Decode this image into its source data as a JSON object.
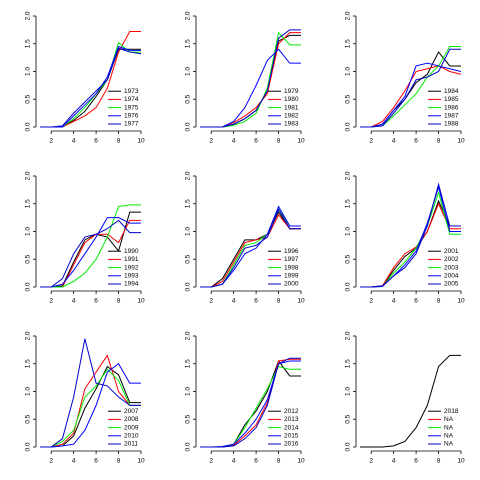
{
  "chart_data": [
    {
      "type": "line",
      "x": [
        1,
        2,
        3,
        4,
        5,
        6,
        7,
        8,
        9,
        10
      ],
      "xlim": [
        1,
        10
      ],
      "xticks": [
        2,
        4,
        6,
        8,
        10
      ],
      "ylim": [
        0,
        2
      ],
      "yticks": [
        {
          "value": 0,
          "label": "0.0"
        },
        {
          "value": 0.5,
          "label": "0.5"
        },
        {
          "value": 1,
          "label": "1.0"
        },
        {
          "value": 1.5,
          "label": "1.5"
        },
        {
          "value": 2,
          "label": "2.0"
        }
      ],
      "legend": "bottomright",
      "series": [
        {
          "name": "1973",
          "color": "#000000",
          "values": [
            0,
            0,
            0,
            0.12,
            0.28,
            0.55,
            0.85,
            1.4,
            1.4,
            1.4
          ]
        },
        {
          "name": "1974",
          "color": "#ff0000",
          "values": [
            0,
            0,
            0,
            0.1,
            0.2,
            0.35,
            0.7,
            1.35,
            1.72,
            1.72
          ]
        },
        {
          "name": "1975",
          "color": "#00ee00",
          "values": [
            0,
            0,
            0,
            0.15,
            0.35,
            0.6,
            0.85,
            1.52,
            1.35,
            1.35
          ]
        },
        {
          "name": "1976",
          "color": "#0000ff",
          "values": [
            0,
            0,
            0,
            0.2,
            0.4,
            0.6,
            0.9,
            1.45,
            1.38,
            1.38
          ]
        },
        {
          "name": "1977",
          "color": "#0000cd",
          "values": [
            0,
            0,
            0.02,
            0.25,
            0.45,
            0.65,
            0.85,
            1.42,
            1.35,
            1.32
          ]
        }
      ]
    },
    {
      "type": "line",
      "x": [
        1,
        2,
        3,
        4,
        5,
        6,
        7,
        8,
        9,
        10
      ],
      "xlim": [
        1,
        10
      ],
      "xticks": [
        2,
        4,
        6,
        8,
        10
      ],
      "ylim": [
        0,
        2
      ],
      "yticks": [
        {
          "value": 0,
          "label": "0.0"
        },
        {
          "value": 0.5,
          "label": "0.5"
        },
        {
          "value": 1,
          "label": "1.0"
        },
        {
          "value": 1.5,
          "label": "1.5"
        },
        {
          "value": 2,
          "label": "2.0"
        }
      ],
      "legend": "bottomright",
      "series": [
        {
          "name": "1979",
          "color": "#000000",
          "values": [
            0,
            0,
            0,
            0.05,
            0.15,
            0.3,
            0.65,
            1.55,
            1.65,
            1.65
          ]
        },
        {
          "name": "1980",
          "color": "#ff0000",
          "values": [
            0,
            0,
            0,
            0.08,
            0.2,
            0.35,
            0.6,
            1.5,
            1.7,
            1.7
          ]
        },
        {
          "name": "1981",
          "color": "#00ee00",
          "values": [
            0,
            0,
            0,
            0.03,
            0.1,
            0.25,
            0.7,
            1.7,
            1.48,
            1.48
          ]
        },
        {
          "name": "1982",
          "color": "#0000ff",
          "values": [
            0,
            0,
            0,
            0.1,
            0.35,
            0.75,
            1.2,
            1.4,
            1.15,
            1.15
          ]
        },
        {
          "name": "1983",
          "color": "#0000cd",
          "values": [
            0,
            0,
            0,
            0.05,
            0.15,
            0.3,
            0.65,
            1.6,
            1.75,
            1.75
          ]
        }
      ]
    },
    {
      "type": "line",
      "x": [
        1,
        2,
        3,
        4,
        5,
        6,
        7,
        8,
        9,
        10
      ],
      "xlim": [
        1,
        10
      ],
      "xticks": [
        2,
        4,
        6,
        8,
        10
      ],
      "ylim": [
        0,
        2
      ],
      "yticks": [
        {
          "value": 0,
          "label": "0.0"
        },
        {
          "value": 0.5,
          "label": "0.5"
        },
        {
          "value": 1,
          "label": "1.0"
        },
        {
          "value": 1.5,
          "label": "1.5"
        },
        {
          "value": 2,
          "label": "2.0"
        }
      ],
      "legend": "bottomright",
      "series": [
        {
          "name": "1984",
          "color": "#000000",
          "values": [
            0,
            0,
            0.05,
            0.3,
            0.5,
            0.8,
            0.95,
            1.35,
            1.1,
            1.1
          ]
        },
        {
          "name": "1985",
          "color": "#ff0000",
          "values": [
            0,
            0,
            0.1,
            0.35,
            0.65,
            1.0,
            1.05,
            1.1,
            1.0,
            0.95
          ]
        },
        {
          "name": "1986",
          "color": "#00ee00",
          "values": [
            0,
            0,
            0.02,
            0.2,
            0.4,
            0.6,
            0.9,
            1.1,
            1.45,
            1.45
          ]
        },
        {
          "name": "1987",
          "color": "#0000ff",
          "values": [
            0,
            0,
            0.05,
            0.3,
            0.55,
            1.1,
            1.15,
            1.1,
            1.05,
            1.0
          ]
        },
        {
          "name": "1988",
          "color": "#0000cd",
          "values": [
            0,
            0,
            0.02,
            0.25,
            0.5,
            0.85,
            0.9,
            1.0,
            1.4,
            1.4
          ]
        }
      ]
    },
    {
      "type": "line",
      "x": [
        1,
        2,
        3,
        4,
        5,
        6,
        7,
        8,
        9,
        10
      ],
      "xlim": [
        1,
        10
      ],
      "xticks": [
        2,
        4,
        6,
        8,
        10
      ],
      "ylim": [
        0,
        2
      ],
      "yticks": [
        {
          "value": 0,
          "label": "0.0"
        },
        {
          "value": 0.5,
          "label": "0.5"
        },
        {
          "value": 1,
          "label": "1.0"
        },
        {
          "value": 1.5,
          "label": "1.5"
        },
        {
          "value": 2,
          "label": "2.0"
        }
      ],
      "legend": "bottomright",
      "series": [
        {
          "name": "1990",
          "color": "#000000",
          "values": [
            0,
            0,
            0.02,
            0.45,
            0.85,
            0.95,
            0.9,
            0.65,
            1.35,
            1.35
          ]
        },
        {
          "name": "1991",
          "color": "#ff0000",
          "values": [
            0,
            0,
            0,
            0.4,
            0.8,
            0.95,
            0.95,
            0.8,
            1.2,
            1.2
          ]
        },
        {
          "name": "1992",
          "color": "#00ee00",
          "values": [
            0,
            0,
            0,
            0.1,
            0.25,
            0.5,
            0.9,
            1.45,
            1.48,
            1.48
          ]
        },
        {
          "name": "1993",
          "color": "#0000ff",
          "values": [
            0,
            0,
            0.05,
            0.3,
            0.6,
            0.9,
            1.25,
            1.25,
            1.15,
            1.15
          ]
        },
        {
          "name": "1994",
          "color": "#0000cd",
          "values": [
            0,
            0,
            0.15,
            0.6,
            0.9,
            0.95,
            1.05,
            1.2,
            0.98,
            0.98
          ]
        }
      ]
    },
    {
      "type": "line",
      "x": [
        1,
        2,
        3,
        4,
        5,
        6,
        7,
        8,
        9,
        10
      ],
      "xlim": [
        1,
        10
      ],
      "xticks": [
        2,
        4,
        6,
        8,
        10
      ],
      "ylim": [
        0,
        2
      ],
      "yticks": [
        {
          "value": 0,
          "label": "0.0"
        },
        {
          "value": 0.5,
          "label": "0.5"
        },
        {
          "value": 1,
          "label": "1.0"
        },
        {
          "value": 1.5,
          "label": "1.5"
        },
        {
          "value": 2,
          "label": "2.0"
        }
      ],
      "legend": "bottomright",
      "series": [
        {
          "name": "1996",
          "color": "#000000",
          "values": [
            0,
            0,
            0.15,
            0.5,
            0.85,
            0.85,
            0.95,
            1.35,
            1.05,
            1.05
          ]
        },
        {
          "name": "1997",
          "color": "#ff0000",
          "values": [
            0,
            0,
            0.1,
            0.45,
            0.8,
            0.85,
            0.9,
            1.3,
            1.05,
            1.05
          ]
        },
        {
          "name": "1998",
          "color": "#00ee00",
          "values": [
            0,
            0,
            0.05,
            0.4,
            0.75,
            0.8,
            0.95,
            1.4,
            1.1,
            1.1
          ]
        },
        {
          "name": "1999",
          "color": "#0000ff",
          "values": [
            0,
            0,
            0.05,
            0.3,
            0.6,
            0.7,
            0.95,
            1.45,
            1.1,
            1.1
          ]
        },
        {
          "name": "2000",
          "color": "#0000cd",
          "values": [
            0,
            0,
            0.05,
            0.35,
            0.7,
            0.75,
            0.9,
            1.4,
            1.05,
            1.05
          ]
        }
      ]
    },
    {
      "type": "line",
      "x": [
        1,
        2,
        3,
        4,
        5,
        6,
        7,
        8,
        9,
        10
      ],
      "xlim": [
        1,
        10
      ],
      "xticks": [
        2,
        4,
        6,
        8,
        10
      ],
      "ylim": [
        0,
        2
      ],
      "yticks": [
        {
          "value": 0,
          "label": "0.0"
        },
        {
          "value": 0.5,
          "label": "0.5"
        },
        {
          "value": 1,
          "label": "1.0"
        },
        {
          "value": 1.5,
          "label": "1.5"
        },
        {
          "value": 2,
          "label": "2.0"
        }
      ],
      "legend": "bottomright",
      "series": [
        {
          "name": "2001",
          "color": "#000000",
          "values": [
            0,
            0,
            0.02,
            0.3,
            0.55,
            0.7,
            1.0,
            1.55,
            1.1,
            1.1
          ]
        },
        {
          "name": "2002",
          "color": "#ff0000",
          "values": [
            0,
            0,
            0.02,
            0.35,
            0.6,
            0.72,
            1.0,
            1.5,
            1.05,
            1.05
          ]
        },
        {
          "name": "2003",
          "color": "#00ee00",
          "values": [
            0,
            0,
            0.01,
            0.25,
            0.45,
            0.7,
            1.1,
            1.7,
            0.95,
            0.95
          ]
        },
        {
          "name": "2004",
          "color": "#0000ff",
          "values": [
            0,
            0,
            0.01,
            0.2,
            0.4,
            0.65,
            1.15,
            1.8,
            1.0,
            1.0
          ]
        },
        {
          "name": "2005",
          "color": "#0000cd",
          "values": [
            0,
            0,
            0.02,
            0.2,
            0.35,
            0.6,
            1.1,
            1.85,
            1.1,
            1.1
          ]
        }
      ]
    },
    {
      "type": "line",
      "x": [
        1,
        2,
        3,
        4,
        5,
        6,
        7,
        8,
        9,
        10
      ],
      "xlim": [
        1,
        10
      ],
      "xticks": [
        2,
        4,
        6,
        8,
        10
      ],
      "ylim": [
        0,
        2
      ],
      "yticks": [
        {
          "value": 0,
          "label": "0.0"
        },
        {
          "value": 0.5,
          "label": "0.5"
        },
        {
          "value": 1,
          "label": "1.0"
        },
        {
          "value": 1.5,
          "label": "1.5"
        },
        {
          "value": 2,
          "label": "2.0"
        }
      ],
      "legend": "bottomright",
      "series": [
        {
          "name": "2007",
          "color": "#000000",
          "values": [
            0,
            0,
            0.02,
            0.2,
            0.7,
            1.05,
            1.45,
            1.3,
            0.8,
            0.8
          ]
        },
        {
          "name": "2008",
          "color": "#ff0000",
          "values": [
            0,
            0,
            0.05,
            0.25,
            1.05,
            1.35,
            1.65,
            1.0,
            0.75,
            0.75
          ]
        },
        {
          "name": "2009",
          "color": "#00ee00",
          "values": [
            0,
            0,
            0.1,
            0.3,
            0.9,
            1.1,
            1.4,
            1.2,
            0.75,
            0.75
          ]
        },
        {
          "name": "2010",
          "color": "#0000ff",
          "values": [
            0,
            0,
            0.02,
            0.05,
            0.3,
            0.75,
            1.35,
            1.5,
            1.15,
            1.15
          ]
        },
        {
          "name": "2011",
          "color": "#0000cd",
          "values": [
            0,
            0,
            0.15,
            0.9,
            1.95,
            1.15,
            1.1,
            0.9,
            0.75,
            0.75
          ]
        }
      ]
    },
    {
      "type": "line",
      "x": [
        1,
        2,
        3,
        4,
        5,
        6,
        7,
        8,
        9,
        10
      ],
      "xlim": [
        1,
        10
      ],
      "xticks": [
        2,
        4,
        6,
        8,
        10
      ],
      "ylim": [
        0,
        2
      ],
      "yticks": [
        {
          "value": 0,
          "label": "0.0"
        },
        {
          "value": 0.5,
          "label": "0.5"
        },
        {
          "value": 1,
          "label": "1.0"
        },
        {
          "value": 1.5,
          "label": "1.5"
        },
        {
          "value": 2,
          "label": "2.0"
        }
      ],
      "legend": "bottomright",
      "series": [
        {
          "name": "2012",
          "color": "#000000",
          "values": [
            0,
            0,
            0,
            0.05,
            0.4,
            0.65,
            1.0,
            1.55,
            1.28,
            1.28
          ]
        },
        {
          "name": "2013",
          "color": "#ff0000",
          "values": [
            0,
            0,
            0,
            0.03,
            0.2,
            0.4,
            0.8,
            1.55,
            1.58,
            1.58
          ]
        },
        {
          "name": "2014",
          "color": "#00ee00",
          "values": [
            0,
            0,
            0,
            0.05,
            0.35,
            0.7,
            1.05,
            1.45,
            1.4,
            1.4
          ]
        },
        {
          "name": "2015",
          "color": "#0000ff",
          "values": [
            0,
            0,
            0.01,
            0.05,
            0.25,
            0.5,
            0.85,
            1.5,
            1.55,
            1.55
          ]
        },
        {
          "name": "2016",
          "color": "#0000cd",
          "values": [
            0,
            0,
            0,
            0.02,
            0.15,
            0.35,
            0.75,
            1.5,
            1.6,
            1.6
          ]
        }
      ]
    },
    {
      "type": "line",
      "x": [
        1,
        2,
        3,
        4,
        5,
        6,
        7,
        8,
        9,
        10
      ],
      "xlim": [
        1,
        10
      ],
      "xticks": [
        2,
        4,
        6,
        8,
        10
      ],
      "ylim": [
        0,
        2
      ],
      "yticks": [
        {
          "value": 0,
          "label": "0.0"
        },
        {
          "value": 0.5,
          "label": "0.5"
        },
        {
          "value": 1,
          "label": "1.0"
        },
        {
          "value": 1.5,
          "label": "1.5"
        },
        {
          "value": 2,
          "label": "2.0"
        }
      ],
      "legend": "bottomright",
      "series": [
        {
          "name": "2018",
          "color": "#000000",
          "values": [
            0,
            0,
            0,
            0.02,
            0.1,
            0.35,
            0.75,
            1.45,
            1.65,
            1.65
          ]
        },
        {
          "name": "NA",
          "color": "#ff0000",
          "values": [
            null,
            null,
            null,
            null,
            null,
            null,
            null,
            null,
            null,
            null
          ]
        },
        {
          "name": "NA",
          "color": "#00ee00",
          "values": [
            null,
            null,
            null,
            null,
            null,
            null,
            null,
            null,
            null,
            null
          ]
        },
        {
          "name": "NA",
          "color": "#0000ff",
          "values": [
            null,
            null,
            null,
            null,
            null,
            null,
            null,
            null,
            null,
            null
          ]
        },
        {
          "name": "NA",
          "color": "#0000cd",
          "values": [
            null,
            null,
            null,
            null,
            null,
            null,
            null,
            null,
            null,
            null
          ]
        }
      ]
    }
  ]
}
